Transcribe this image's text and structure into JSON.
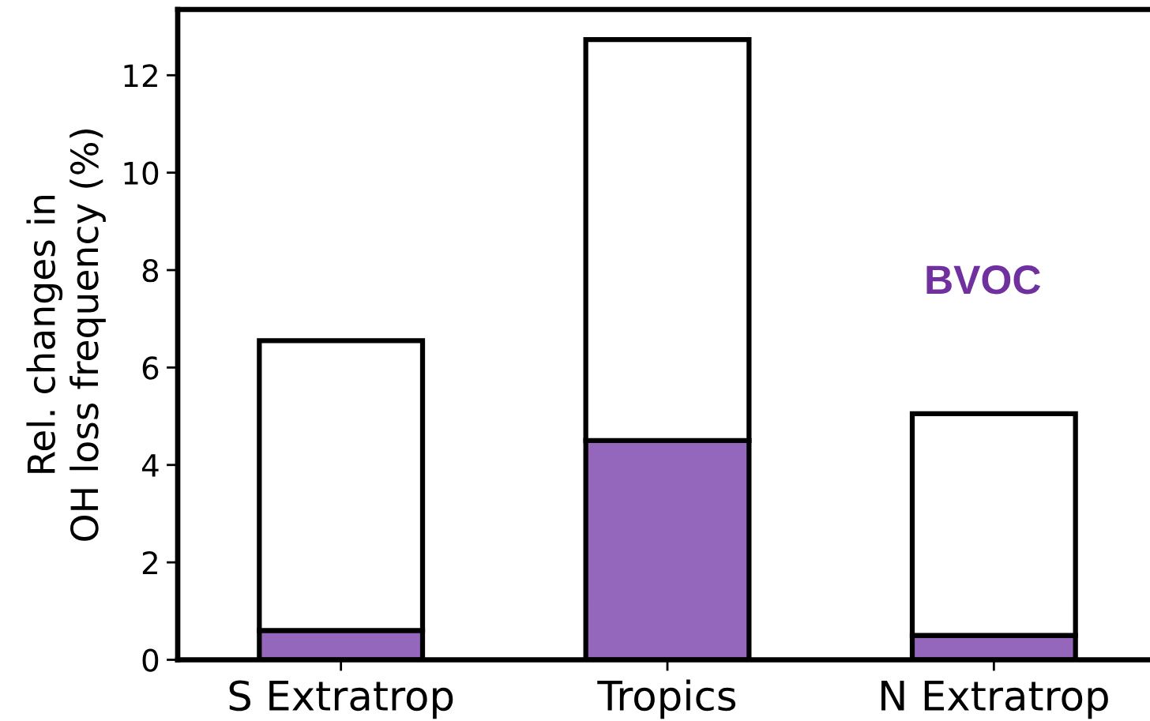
{
  "chart_data": {
    "type": "bar",
    "ylabel": "Rel. changes in\nOH loss frequency (%)",
    "categories": [
      "S Extratrop",
      "Tropics",
      "N Extratrop"
    ],
    "stacked": true,
    "series": [
      {
        "color": "#9467bd",
        "values": [
          0.6,
          4.5,
          0.5
        ]
      },
      {
        "color": "#ffffff",
        "values": [
          5.95,
          8.23,
          4.55
        ]
      }
    ],
    "ylim": [
      0,
      13.35
    ],
    "yticks": [
      0,
      2,
      4,
      6,
      8,
      10,
      12
    ],
    "annotations": [
      "BVOC"
    ]
  }
}
